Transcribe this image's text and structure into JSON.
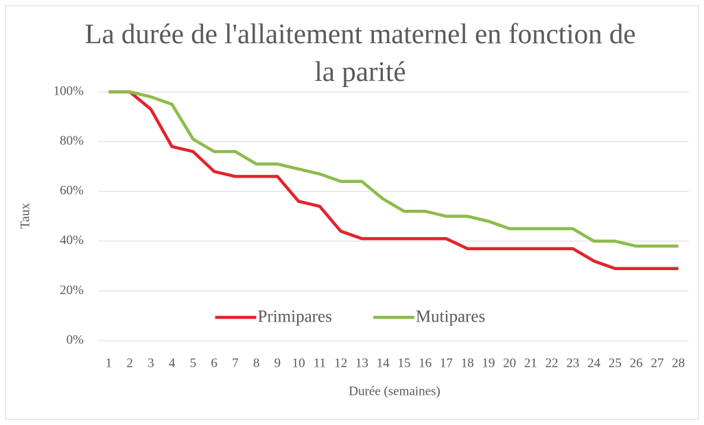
{
  "chart_data": {
    "type": "line",
    "title": "La durée de l'allaitement maternel en fonction de la parité",
    "xlabel": "Durée (semaines)",
    "ylabel": "Taux",
    "categories": [
      1,
      2,
      3,
      4,
      5,
      6,
      7,
      8,
      9,
      10,
      11,
      12,
      13,
      14,
      15,
      16,
      17,
      18,
      19,
      20,
      21,
      22,
      23,
      24,
      25,
      26,
      27,
      28
    ],
    "series": [
      {
        "name": "Primipares",
        "color": "#e3232c",
        "values": [
          100,
          100,
          93,
          78,
          76,
          68,
          66,
          66,
          66,
          56,
          54,
          44,
          41,
          41,
          41,
          41,
          41,
          37,
          37,
          37,
          37,
          37,
          37,
          32,
          29,
          29,
          29,
          29
        ]
      },
      {
        "name": "Mutipares",
        "color": "#8cbc4a",
        "values": [
          100,
          100,
          98,
          95,
          81,
          76,
          76,
          71,
          71,
          69,
          67,
          64,
          64,
          57,
          52,
          52,
          50,
          50,
          48,
          45,
          45,
          45,
          45,
          40,
          40,
          38,
          38,
          38
        ]
      }
    ],
    "ylim": [
      0,
      100
    ],
    "yticks": [
      {
        "value": 0,
        "label": "0%"
      },
      {
        "value": 20,
        "label": "20%"
      },
      {
        "value": 40,
        "label": "40%"
      },
      {
        "value": 60,
        "label": "60%"
      },
      {
        "value": 80,
        "label": "80%"
      },
      {
        "value": 100,
        "label": "100%"
      }
    ],
    "grid": true,
    "legend": "center"
  }
}
